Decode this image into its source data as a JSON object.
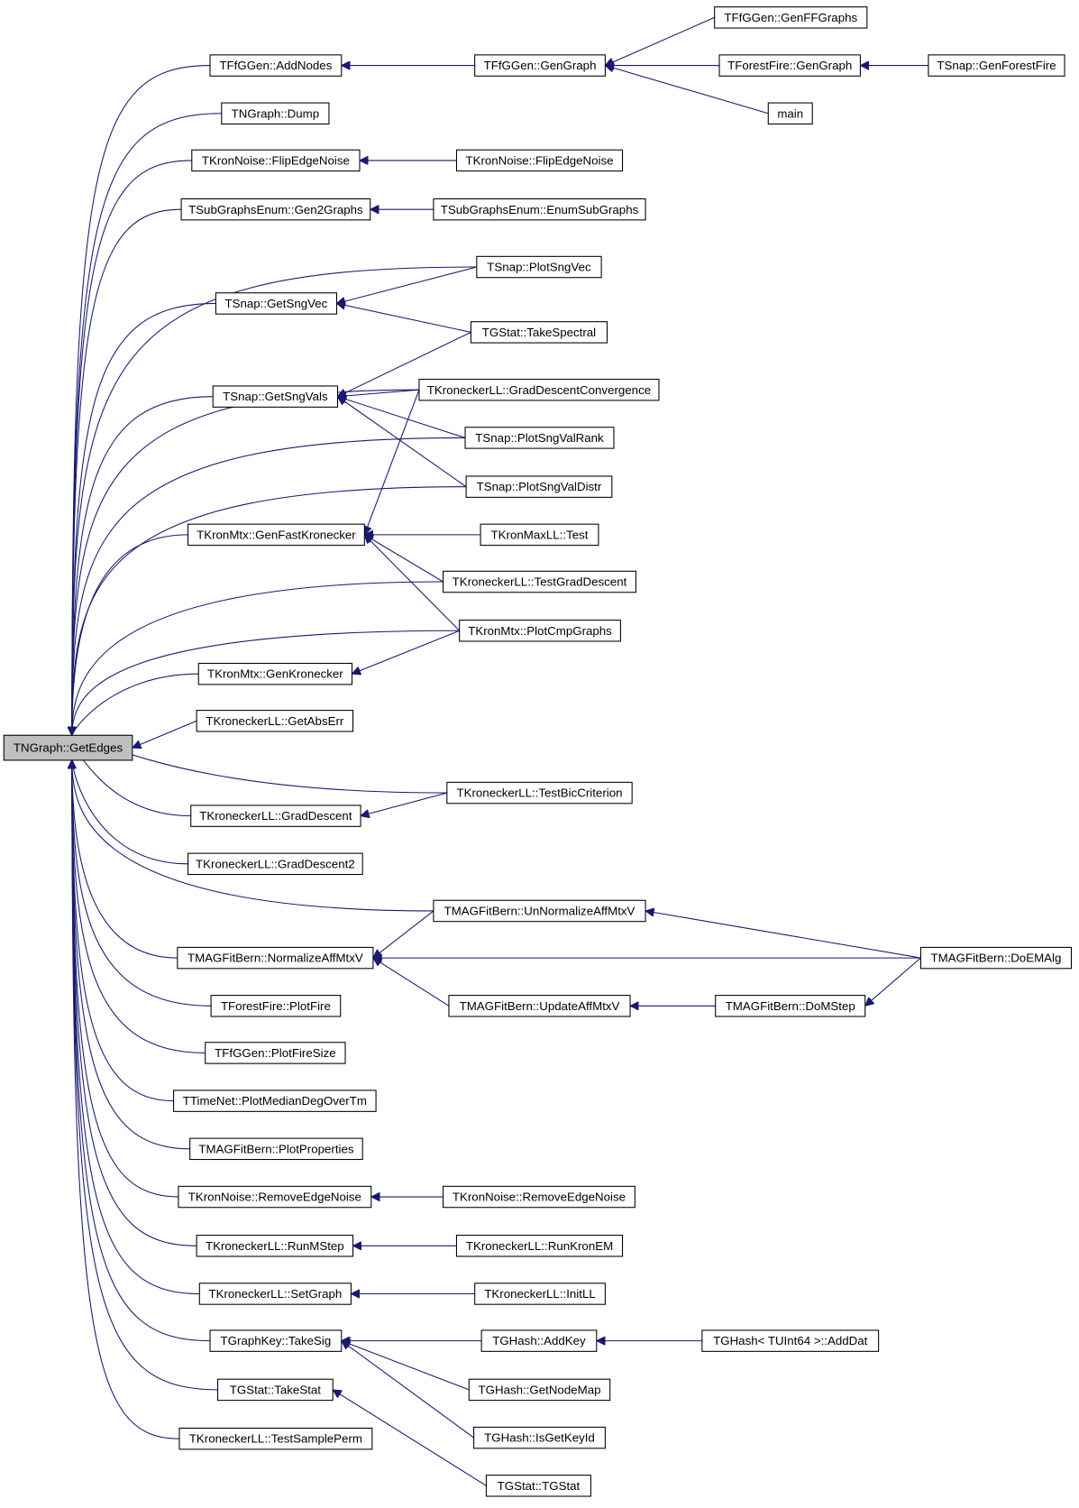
{
  "nodes": [
    {
      "label": "TNGraph::GetEdges"
    },
    {
      "label": "TFfGGen::AddNodes"
    },
    {
      "label": "TFfGGen::GenGraph"
    },
    {
      "label": "TFfGGen::GenFFGraphs"
    },
    {
      "label": "TForestFire::GenGraph"
    },
    {
      "label": "TSnap::GenForestFire"
    },
    {
      "label": "main"
    },
    {
      "label": "TNGraph::Dump"
    },
    {
      "label": "TKronNoise::FlipEdgeNoise"
    },
    {
      "label": "TKronNoise::FlipEdgeNoise"
    },
    {
      "label": "TSubGraphsEnum::Gen2Graphs"
    },
    {
      "label": "TSubGraphsEnum::EnumSubGraphs"
    },
    {
      "label": "TSnap::PlotSngVec"
    },
    {
      "label": "TSnap::GetSngVec"
    },
    {
      "label": "TGStat::TakeSpectral"
    },
    {
      "label": "TSnap::GetSngVals"
    },
    {
      "label": "TKroneckerLL::GradDescentConvergence"
    },
    {
      "label": "TSnap::PlotSngValRank"
    },
    {
      "label": "TSnap::PlotSngValDistr"
    },
    {
      "label": "TKronMtx::GenFastKronecker"
    },
    {
      "label": "TKronMaxLL::Test"
    },
    {
      "label": "TKroneckerLL::TestGradDescent"
    },
    {
      "label": "TKronMtx::PlotCmpGraphs"
    },
    {
      "label": "TKronMtx::GenKronecker"
    },
    {
      "label": "TKroneckerLL::GetAbsErr"
    },
    {
      "label": "TKroneckerLL::TestBicCriterion"
    },
    {
      "label": "TKroneckerLL::GradDescent"
    },
    {
      "label": "TKroneckerLL::GradDescent2"
    },
    {
      "label": "TMAGFitBern::UnNormalizeAffMtxV"
    },
    {
      "label": "TMAGFitBern::NormalizeAffMtxV"
    },
    {
      "label": "TMAGFitBern::DoEMAlg"
    },
    {
      "label": "TMAGFitBern::UpdateAffMtxV"
    },
    {
      "label": "TMAGFitBern::DoMStep"
    },
    {
      "label": "TForestFire::PlotFire"
    },
    {
      "label": "TFfGGen::PlotFireSize"
    },
    {
      "label": "TTimeNet::PlotMedianDegOverTm"
    },
    {
      "label": "TMAGFitBern::PlotProperties"
    },
    {
      "label": "TKronNoise::RemoveEdgeNoise"
    },
    {
      "label": "TKronNoise::RemoveEdgeNoise"
    },
    {
      "label": "TKroneckerLL::RunMStep"
    },
    {
      "label": "TKroneckerLL::RunKronEM"
    },
    {
      "label": "TKroneckerLL::SetGraph"
    },
    {
      "label": "TKroneckerLL::InitLL"
    },
    {
      "label": "TGraphKey::TakeSig"
    },
    {
      "label": "TGHash::AddKey"
    },
    {
      "label": "TGHash< TUInt64 >::AddDat"
    },
    {
      "label": "TGHash::GetNodeMap"
    },
    {
      "label": "TGHash::IsGetKeyId"
    },
    {
      "label": "TGStat::TakeStat"
    },
    {
      "label": "TGStat::TGStat"
    },
    {
      "label": "TKroneckerLL::TestSamplePerm"
    }
  ]
}
